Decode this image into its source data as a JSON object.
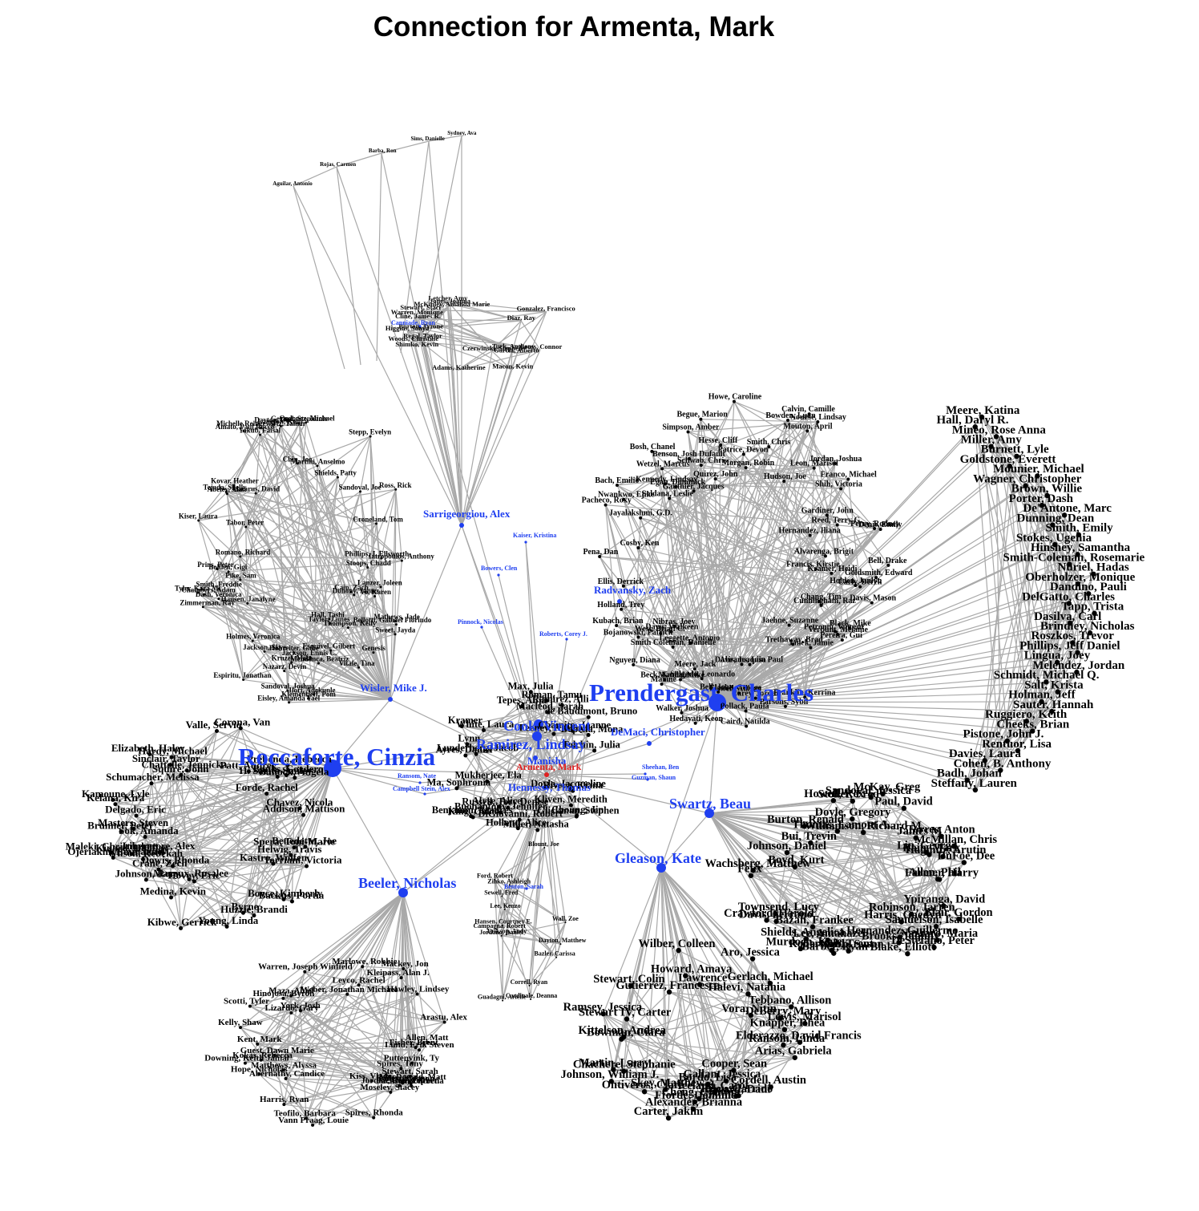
{
  "title": "Connection for Armenta, Mark",
  "colors": {
    "ego": "#e02020",
    "hub": "#1f3ff0",
    "leaf": "#000000",
    "edge": "#a9a9a9"
  },
  "ego": "Armenta, Mark",
  "hubs": [
    {
      "id": "prendergast",
      "label": "Prendergast, Charles",
      "tier": 1
    },
    {
      "id": "roccaforte",
      "label": "Roccaforte, Cinzia",
      "tier": 1
    },
    {
      "id": "ramirez",
      "label": "Ramirez, Lindsay",
      "tier": 2
    },
    {
      "id": "cook",
      "label": "Cook, Vincent",
      "tier": 2
    },
    {
      "id": "swartz",
      "label": "Swartz, Beau",
      "tier": 2
    },
    {
      "id": "gleason",
      "label": "Gleason, Kate",
      "tier": 2
    },
    {
      "id": "beeler",
      "label": "Beeler, Nicholas",
      "tier": 2
    },
    {
      "id": "hennessy",
      "label": "Hennessy, Thomas",
      "tier": 3
    },
    {
      "id": "sarrigeorgiou",
      "label": "Sarrigeorgiou, Alex",
      "tier": 3
    },
    {
      "id": "wisler",
      "label": "Wisler, Mike J.",
      "tier": 3
    },
    {
      "id": "demaci",
      "label": "DeMaci, Christopher",
      "tier": 3
    },
    {
      "id": "radvansky",
      "label": "Radvansky, Zach",
      "tier": 3
    },
    {
      "id": "manisha",
      "label": "Manisha",
      "tier": 3
    },
    {
      "id": "kaiser",
      "label": "Kaiser, Kristina",
      "tier": 4
    },
    {
      "id": "bowers",
      "label": "Bowers, Clen",
      "tier": 4
    },
    {
      "id": "pinnock",
      "label": "Pinnock, Nicolas",
      "tier": 4
    },
    {
      "id": "roberts",
      "label": "Roberts, Corey J.",
      "tier": 4
    },
    {
      "id": "ransom",
      "label": "Ransom, Nate",
      "tier": 4
    },
    {
      "id": "campbell",
      "label": "Campbell Stein, Alex",
      "tier": 4
    },
    {
      "id": "sheehan",
      "label": "Sheehan, Ben",
      "tier": 4
    },
    {
      "id": "guzman",
      "label": "Guzman, Shaun",
      "tier": 4
    },
    {
      "id": "canniade",
      "label": "Canniade, Ryan",
      "tier": 4
    },
    {
      "id": "benton",
      "label": "Benton, Sarah",
      "tier": 4
    }
  ],
  "clusters": [
    {
      "id": "fan",
      "hub": "sarrigeorgiou",
      "labels": [
        "Sydney, Ava",
        "Sims, Danielle",
        "Barba, Ron",
        "Rojas, Carmen",
        "Aguilar, Antonio"
      ]
    },
    {
      "id": "north",
      "hub": "sarrigeorgiou",
      "labels": [
        "Higgins, Sonya",
        "Turk, Anthony",
        "Woods, Christine",
        "Cross, Connor",
        "Stewart, Staci",
        "Adams, Katherine",
        "McKinley, Amanda Marie",
        "Burton, Tyrone",
        "Jones, Joanna",
        "Warren, Monique",
        "Czerwinski, Stephen",
        "Gonzalez, Francisco",
        "Garcia, Alberto",
        "Diaz, Ray",
        "Shimko, Kevin",
        "Letcher, Amy",
        "Macon, Kevin",
        "Regal, Taylor",
        "Cline, James R."
      ]
    },
    {
      "id": "nw",
      "hub": "wisler",
      "labels": [
        "Vitale, Tina",
        "Holmes, Veronica",
        "Bellotti, Gabriel Fiorindo",
        "Klementieff, Pom",
        "Bolden, Gigi",
        "Kovar, Heather",
        "Ordonez, Michael",
        "Thompson, Kelly",
        "Pike, Sam",
        "Lanzer, Joleen",
        "Yakub, Faisal",
        "Croneland, Tom",
        "Dash, Veronica",
        "Zimmerman, Ray",
        "Smith, Freddie",
        "Hohreiter, Gabe",
        "Chin, Joe",
        "Sandoval, Joshua",
        "Stepp, Evelyn",
        "Ross, Rick",
        "Gerard, Stephanie",
        "Tabor, Peter",
        "Jackson, Skye",
        "Mendonca, Beatriz",
        "Michelle Reingewirtz, Tamar",
        "Eisley, Amanda Yael",
        "Phillips, J. Ellsworth",
        "Abeley, Alan",
        "Sweet, Jayda",
        "Tyler, Kara M.",
        "Tejada, Shelly",
        "Genesis",
        "Sandoval, Joe",
        "Stoops, Chadd",
        "Dayton, Drew",
        "Amato, Paul Rocco",
        "Ilori, Adekunle",
        "Tayler, James",
        "Cain, Zach",
        "Kiser, Laura",
        "Shields, Patty",
        "Romano, Richard",
        "Nazarz, Devin",
        "Vo, Karen",
        "Jackson, Ennis C.",
        "Martini, Anselmo",
        "Hall, Tashi",
        "Lazarus, David",
        "Hansen, Janalyne",
        "Prins, Peter",
        "Iatropoulos, Anthony",
        "Chambers, Adam",
        "Espiritu, Jonathan",
        "Langton, Kelly",
        "Kruzel, Mike",
        "Mathews, Jade",
        "Dohony, James",
        "Esquivel, Gilbert"
      ]
    },
    {
      "id": "west",
      "hub": "roccaforte",
      "labels": [
        "Benedetto, Joe",
        "Wilson, Rebekah",
        "Kelana, Kira",
        "Delgado, Eric",
        "Backus, Portia",
        "Hardy, Michael",
        "Bullock, Angela",
        "Ojeriakhi, Emmanuel",
        "H. Sarita Smiley",
        "Brunner, Peter",
        "Corona, Van",
        "Kamoune, Lyle",
        "Elizabeth, Haley",
        "Liberatore, Alex",
        "Addison, Mattison",
        "Sinclair, Taylor",
        "Valle, Servio",
        "Masters, Steven",
        "Prebenda, Rebecca",
        "Helwig, Travis",
        "Maleki, Christopher",
        "Squire, John",
        "Chattelle, Jennicka",
        "Byrne",
        "Hovey, Eric",
        "Chavez, Nicola",
        "Spera, Toni-Marie",
        "Huzzie, Brandi",
        "Young, Linda",
        "Kibwe, Gerrick",
        "Schumacher, Melissa",
        "Patt, Audrey",
        "Medina, Kevin",
        "Banks, Cordero",
        "Kastro, Wolfen",
        "Sok, Amanda",
        "Johnson, Rory",
        "Mayeux, Rosalee",
        "Torriani, Victoria",
        "Kinard, Holiday",
        "Forde, Rachel",
        "Crane, Zech",
        "Dowis, Rhonda",
        "Boyce, Kimberly"
      ]
    },
    {
      "id": "center",
      "hub": "ramirez",
      "labels": [
        "Feeney, Kathryn",
        "Lunderberg, Jacob",
        "Alyse, Alice",
        "Tepes, Anja",
        "Miller, Natasha",
        "de Baudimont, Bruno",
        "Benjamin, Frances",
        "Macleod, Sarah",
        "Rivera, Kiana",
        "Glickman, Stephen",
        "Kramer",
        "DiGiovanni, Robert",
        "Russell, Tory Denise",
        "Depena, Mona",
        "Roman, Tamu",
        "Holland, Alice",
        "Choung, Jin",
        "Tolchin, Julia",
        "Buonantony, Jennifer",
        "Lynn",
        "Kliven, Meredith",
        "Ramirez, Alli",
        "Ayres, Daniel",
        "White, Laura",
        "Doyle, Jacqueline",
        "King, Chloe",
        "Max, Julia",
        "Ma, Sophronia",
        "Mukherjee, Ela",
        "Chamito, Joanne"
      ]
    },
    {
      "id": "south-center",
      "hub": "hennessy",
      "labels": [
        "Correll, Ryan",
        "Dayton, Matthew",
        "Guadagni, Arielle",
        "Blount, Joe",
        "Lee, Kenzo",
        "Jordano, Daniel",
        "Campagna, Robert",
        "Cardinale, Deanna",
        "Sewell, Fred",
        "Ford, Robert",
        "Hansen, Courtney E.",
        "Wall, Zoe",
        "Erikson, Andy",
        "Zinko, Ashleigh",
        "Bazler, Carissa"
      ]
    },
    {
      "id": "sw",
      "hub": "beeler",
      "labels": [
        "Hope, Nicholas",
        "Arastu, Alex",
        "Kiss, Vlade",
        "Mackey, Jon",
        "Kleipass, Alan J.",
        "Scotti, Tyler",
        "Lund, Erik Steven",
        "York, Josh",
        "Maza, Abiel",
        "Vann Praag, Louie",
        "Lizardo, Gary",
        "Warren, Joseph Winfield",
        "Fisher, Brent",
        "Jordan, Christopher",
        "Puttenvink, Ty",
        "Kent, Mark",
        "Kelly, Shaw",
        "Stewart, Sarah",
        "Spires, Tony",
        "Moseley, Stacey",
        "Bailey, Kasey",
        "MacDonald, Matt",
        "Teofilo, Barbara",
        "Kokas, Rebecca",
        "Hawley, Lindsey",
        "Harris, Ryan",
        "Guest, Dawn Marie",
        "Leyco, Rachel",
        "Hinojosa, Byron",
        "Downing, Keith Jamal",
        "Jackson, Lucretia",
        "Matthews, Alyssa",
        "Marlowe, Robbie",
        "Spires, Rhonda",
        "Stuart, Jason",
        "Weber, Jonathan Michael",
        "Abernathy, Candice",
        "Allen, Matt"
      ]
    },
    {
      "id": "ne",
      "hub": "prendergast",
      "labels": [
        "Hesse, Cliff",
        "Holden, Janlyn",
        "Holland, Trey",
        "Goldsmith, Edward",
        "Kubach, Brian",
        "Morgan, Robin",
        "Perry, Rodney",
        "Gardiner, John",
        "Salgado, Leonardo",
        "Franco, Michael",
        "Leon, Marisol",
        "Nguyen, Diana",
        "Franklin, Kerrina",
        "Nwankwo, Ejike",
        "Beck, Kathrin",
        "Petronni, Vincent",
        "Nibras, Joey",
        "Cosby, Ken",
        "Bell, Drake",
        "Kennedy, Lindsay",
        "Caird, Natilda",
        "Pollack, Paula",
        "Wetzel, Marcus",
        "Hudson, Joe",
        "Jaehne, Suzanne",
        "Howe, Caroline",
        "Gauthier, Jacques",
        "Kramer, Heidi",
        "Hedayati, Keon",
        "Francis, Kirstie",
        "Carey, Jordan",
        "Soldana, Leslie",
        "Clarke, George",
        "Verbunt, Melanie",
        "Carly, Derek",
        "Begue, Marion",
        "Reed, Terry G.",
        "Jordan, Joshua",
        "Quirez, John",
        "Janek, Jamie",
        "Pena, Dan",
        "Bach, Emilio",
        "Denis, Emily",
        "Davis, Joaquin Paul",
        "Benson, Josh Dufault",
        "Smith, Chris",
        "West, Brian C.",
        "Walker, Joshua",
        "Hernandez, Iliana",
        "Meere, Jack",
        "Calvin, Camille",
        "Patrice, Devon",
        "Maxine",
        "Pacheco, Roxy",
        "Jayalakshmi, G.D.",
        "Bowden, Luan",
        "Mouton, April",
        "Simpson, Amber",
        "Davis, Mason",
        "Alvarenga, Brigit",
        "Ellis, Derrick",
        "Davis, Walkeen",
        "Smith Coleman, Danielle",
        "Abrams, Lisa",
        "Trethaway, Brad",
        "Bell, Joan",
        "Leggette, Antonio",
        "Schwab, Chris",
        "Cunningham, Raz",
        "Pereira, Gui",
        "Matola, Mike",
        "Black, Mike",
        "Nourse, Lindsay",
        "Bojanowski, Patrick",
        "Egan, Dominick",
        "Shih, Victoria",
        "Elswell, Allison",
        "Chang, Tim",
        "Bosh, Chanel",
        "Parsons, Sybil"
      ]
    },
    {
      "id": "east",
      "hub": "prendergast",
      "labels": [
        "Meere, Katina",
        "Hall, Daryl R.",
        "Mineo, Rose Anna",
        "Miller, Amy",
        "Burnett, Lyle",
        "Goldstone, Everett",
        "Mounier, Michael",
        "Wagner, Christopher",
        "Brown, Willie",
        "Porter, Dash",
        "De'Antone, Marc",
        "Dunning, Dean",
        "Smith, Emily",
        "Stokes, Ugenia",
        "Hinshey, Samantha",
        "Smith-Coleman, Rosemarie",
        "Nuriel, Hadas",
        "Oberholzer, Monique",
        "Dandino, Pauli",
        "DelGatto, Charles",
        "Tapp, Trista",
        "Dasilva, Carl",
        "Brindley, Nicholas",
        "Roszkos, Trevor",
        "Phillips, Jeff Daniel",
        "Lingua, Joey",
        "Melendez, Jordan",
        "Schmidt, Michael Q.",
        "Salt, Krista",
        "Holman, Jeff",
        "Sauter, Hannah",
        "Ruggiero, Keith",
        "Cheeks, Brian",
        "Pistone, John J.",
        "Rentuor, Lisa",
        "Davies, Laura",
        "Cohen, B. Anthony",
        "Badh, Johan",
        "Steffany, Lauren"
      ]
    },
    {
      "id": "se",
      "hub": "swartz",
      "labels": [
        "Paul, David",
        "Allen, Phil",
        "Bui, Trevin",
        "Lee, Amahazel",
        "Torres, Anton",
        "Wachsberg, Matthew",
        "Bazan, Frankee",
        "Robinson, Jarren",
        "Hernandez, Guillermo",
        "Webb, Susan",
        "Farmer, Harry",
        "Hagmuz, Arutin",
        "Davis, Serrano",
        "James M",
        "DeStefano, Peter",
        "Blair, Gordon",
        "Ypiranga, David",
        "Samuelson, Isabelle",
        "Burton, Renald",
        "Lin, George",
        "Brooks, Johnny",
        "Crawford, Harold",
        "Sandoval, Jessica",
        "Thomas, Lamont A.",
        "Doyle, Gregory",
        "McMillan, Chris",
        "DuFoe, Dee",
        "Rain, Mark",
        "Williamson, Richard M.",
        "Shields, Angelica",
        "Murdoch, Kate",
        "Johnson, Daniel",
        "Harris, Gaedyn",
        "Robertson, Trent",
        "Howell, Rex",
        "Stoller, Fred",
        "Nazzaro, Maria",
        "Felix",
        "Townsend, Lucy",
        "Blake, Elliott",
        "Barber, Ryan",
        "Boyd, Kurt",
        "McKay, Greg"
      ]
    },
    {
      "id": "south",
      "hub": "gleason",
      "labels": [
        "Johnson, William J.",
        "Martin, Larry",
        "Fforde, Dominic",
        "Riley, Garrido",
        "Chachere, Stephanie",
        "Tebbano, Allison",
        "Vora, Nitin",
        "Aro, Jessica",
        "Gallant, Jessica",
        "Elderazzo, David Francis",
        "Ransom, Linda",
        "Carter, Jakim",
        "Lawrence",
        "Skey, Matthew",
        "Stewart, Colin",
        "Bowman, Ciara",
        "Arias, Gabriela",
        "Kittelson, Andrea",
        "Ramsey, Jessica",
        "Stewart IV, Carter",
        "Cheng, Cynthia",
        "Alexander, Brianna",
        "Cooper, Sean",
        "Iceland, Carol",
        "DeBerry, Mary",
        "Bayard, Dani",
        "Howard, Amaya",
        "Knapper, Rhea",
        "Lewis, Marisol",
        "Cordell, Austin",
        "Gutierrez, Francesca",
        "Gerlach, Michael",
        "Wilber, Colleen",
        "Ontiveros, Clare",
        "Bordo, Lisa",
        "Halevi, Natania"
      ]
    }
  ]
}
